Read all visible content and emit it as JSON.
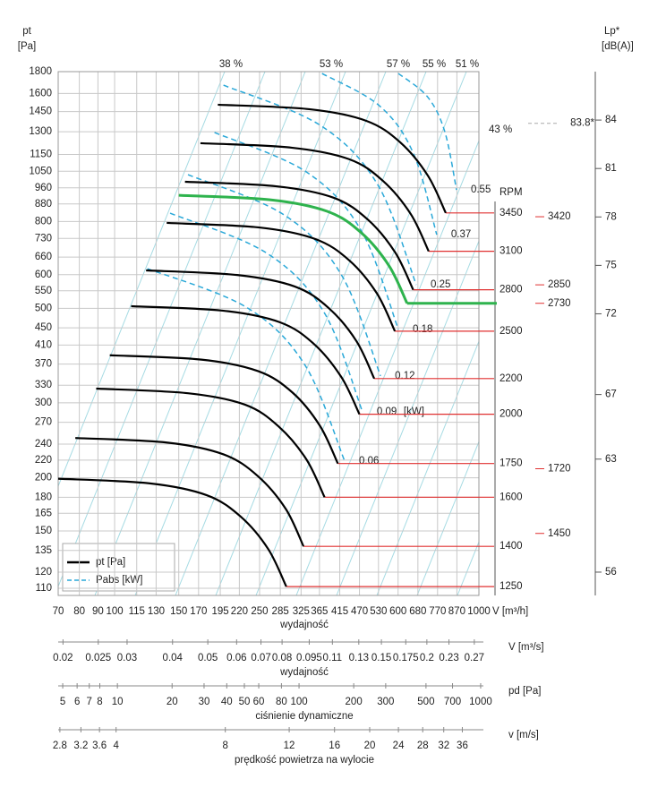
{
  "chart_data": {
    "type": "line",
    "ylabel": "pt",
    "yunit": "[Pa]",
    "y2label": "Lp*",
    "y2unit": "[dB(A)]",
    "xunit": "V [m³/h]",
    "xlabel": "wydajność",
    "rpm_label": "RPM",
    "log_x": true,
    "log_y": true,
    "grid": true,
    "xlim": [
      70,
      1000
    ],
    "ylim": [
      110,
      1800
    ],
    "xticks": [
      70,
      80,
      90,
      100,
      115,
      130,
      150,
      170,
      195,
      220,
      250,
      285,
      325,
      365,
      415,
      470,
      530,
      600,
      680,
      770,
      870,
      1000
    ],
    "yticks": [
      110,
      120,
      135,
      150,
      165,
      180,
      200,
      220,
      240,
      270,
      300,
      330,
      370,
      410,
      450,
      500,
      550,
      600,
      660,
      730,
      800,
      880,
      960,
      1050,
      1150,
      1300,
      1450,
      1600,
      1800
    ],
    "y2lim": [
      55,
      87
    ],
    "y2ticks": [
      84,
      81,
      78,
      75,
      72,
      67,
      63,
      56
    ],
    "operating_color": "#e03030",
    "series": [
      {
        "name": "3450",
        "color": "#000000",
        "x": [
          192,
          342,
          490,
          608,
          724,
          811
        ],
        "values": [
          1505,
          1469,
          1380,
          1228,
          1026,
          838
        ]
      },
      {
        "name": "3100",
        "color": "#000000",
        "x": [
          172,
          306,
          440,
          545,
          650,
          728
        ],
        "values": [
          1222,
          1193,
          1121,
          997,
          833,
          681
        ]
      },
      {
        "name": "2800",
        "color": "#000000",
        "x": [
          156,
          278,
          399,
          495,
          589,
          660
        ],
        "values": [
          992,
          968,
          910,
          809,
          677,
          553
        ]
      },
      {
        "name": "2730",
        "color": "#2eb34d",
        "x": [
          150,
          267,
          384,
          476,
          567,
          635
        ],
        "values": [
          922,
          900,
          845,
          752,
          629,
          514
        ]
      },
      {
        "name": "2500",
        "color": "#000000",
        "x": [
          139,
          248,
          355,
          441,
          525,
          588
        ],
        "values": [
          794,
          775,
          728,
          648,
          542,
          442
        ]
      },
      {
        "name": "2200",
        "color": "#000000",
        "x": [
          122,
          217,
          312,
          387,
          461,
          516
        ],
        "values": [
          614,
          599,
          563,
          501,
          419,
          342
        ]
      },
      {
        "name": "2000",
        "color": "#000000",
        "x": [
          111,
          198,
          284,
          352,
          419,
          470
        ],
        "values": [
          506,
          494,
          464,
          413,
          345,
          282
        ]
      },
      {
        "name": "1750",
        "color": "#000000",
        "x": [
          97,
          173,
          248,
          308,
          366,
          410
        ],
        "values": [
          388,
          379,
          356,
          317,
          265,
          216
        ]
      },
      {
        "name": "1600",
        "color": "#000000",
        "x": [
          89,
          159,
          228,
          282,
          336,
          377
        ],
        "values": [
          324,
          316,
          297,
          264,
          221,
          180
        ]
      },
      {
        "name": "1400",
        "color": "#000000",
        "x": [
          78,
          139,
          199,
          247,
          295,
          330
        ],
        "values": [
          248,
          242,
          227,
          202,
          169,
          138
        ]
      },
      {
        "name": "1250",
        "color": "#000000",
        "x": [
          70,
          125,
          179,
          222,
          264,
          296
        ],
        "values": [
          199,
          194,
          182,
          162,
          136,
          111
        ]
      }
    ],
    "power_color": "#2aa8d8",
    "power_unit": "[kW]",
    "power_curves": [
      {
        "name": "0.55",
        "x": [
          601,
          722,
          806,
          868
        ],
        "values": [
          1782,
          1572,
          1301,
          949
        ]
      },
      {
        "name": "0.37",
        "x": [
          371,
          533,
          662,
          766
        ],
        "values": [
          1782,
          1497,
          1153,
          745
        ]
      },
      {
        "name": "0.25",
        "x": [
          199,
          366,
          528,
          673
        ],
        "values": [
          1673,
          1348,
          975,
          568
        ]
      },
      {
        "name": "0.18",
        "x": [
          188,
          336,
          476,
          601
        ],
        "values": [
          1295,
          1046,
          760,
          446
        ]
      },
      {
        "name": "0.12",
        "x": [
          159,
          292,
          420,
          537
        ],
        "values": [
          1031,
          829,
          598,
          347
        ]
      },
      {
        "name": "0.09",
        "x": [
          142,
          261,
          376,
          479
        ],
        "values": [
          837,
          675,
          489,
          286
        ]
      },
      {
        "name": "0.06",
        "x": [
          123,
          230,
          333,
          428
        ],
        "values": [
          620,
          503,
          368,
          219
        ]
      }
    ],
    "efficiency_labels": [
      "38 %",
      "53 %",
      "57 %",
      "55 %",
      "51 %",
      "43 %"
    ],
    "noise_level": {
      "value": 83.8,
      "label": "83.8*"
    },
    "extra_speeds": [
      {
        "name": "3420",
        "value": 821
      },
      {
        "name": "2850",
        "value": 568
      },
      {
        "name": "1720",
        "value": 210
      },
      {
        "name": "1450",
        "value": 148
      }
    ],
    "legend": [
      {
        "label": "pt [Pa]"
      },
      {
        "label": "Pabs [kW]"
      }
    ],
    "scales": [
      {
        "unit": "V  [m³/s]",
        "label": "wydajność",
        "lim": [
          0.0194,
          0.278
        ],
        "ticks": [
          0.02,
          0.025,
          0.03,
          0.04,
          0.05,
          0.06,
          0.07,
          0.08,
          0.095,
          0.11,
          0.13,
          0.15,
          0.175,
          0.2,
          0.23,
          0.27
        ]
      },
      {
        "unit": "pd  [Pa]",
        "label": "ciśnienie dynamiczne",
        "lim": [
          4.72,
          978
        ],
        "ticks": [
          5,
          6,
          7,
          8,
          10,
          20,
          30,
          40,
          50,
          60,
          80,
          100,
          200,
          300,
          500,
          700,
          1000
        ]
      },
      {
        "unit": "v  [m/s]",
        "label": "prędkość powietrza na wylocie",
        "lim": [
          2.77,
          40
        ],
        "ticks": [
          2.8,
          3.2,
          3.6,
          4,
          8,
          12,
          16,
          20,
          24,
          28,
          32,
          36
        ]
      }
    ]
  }
}
